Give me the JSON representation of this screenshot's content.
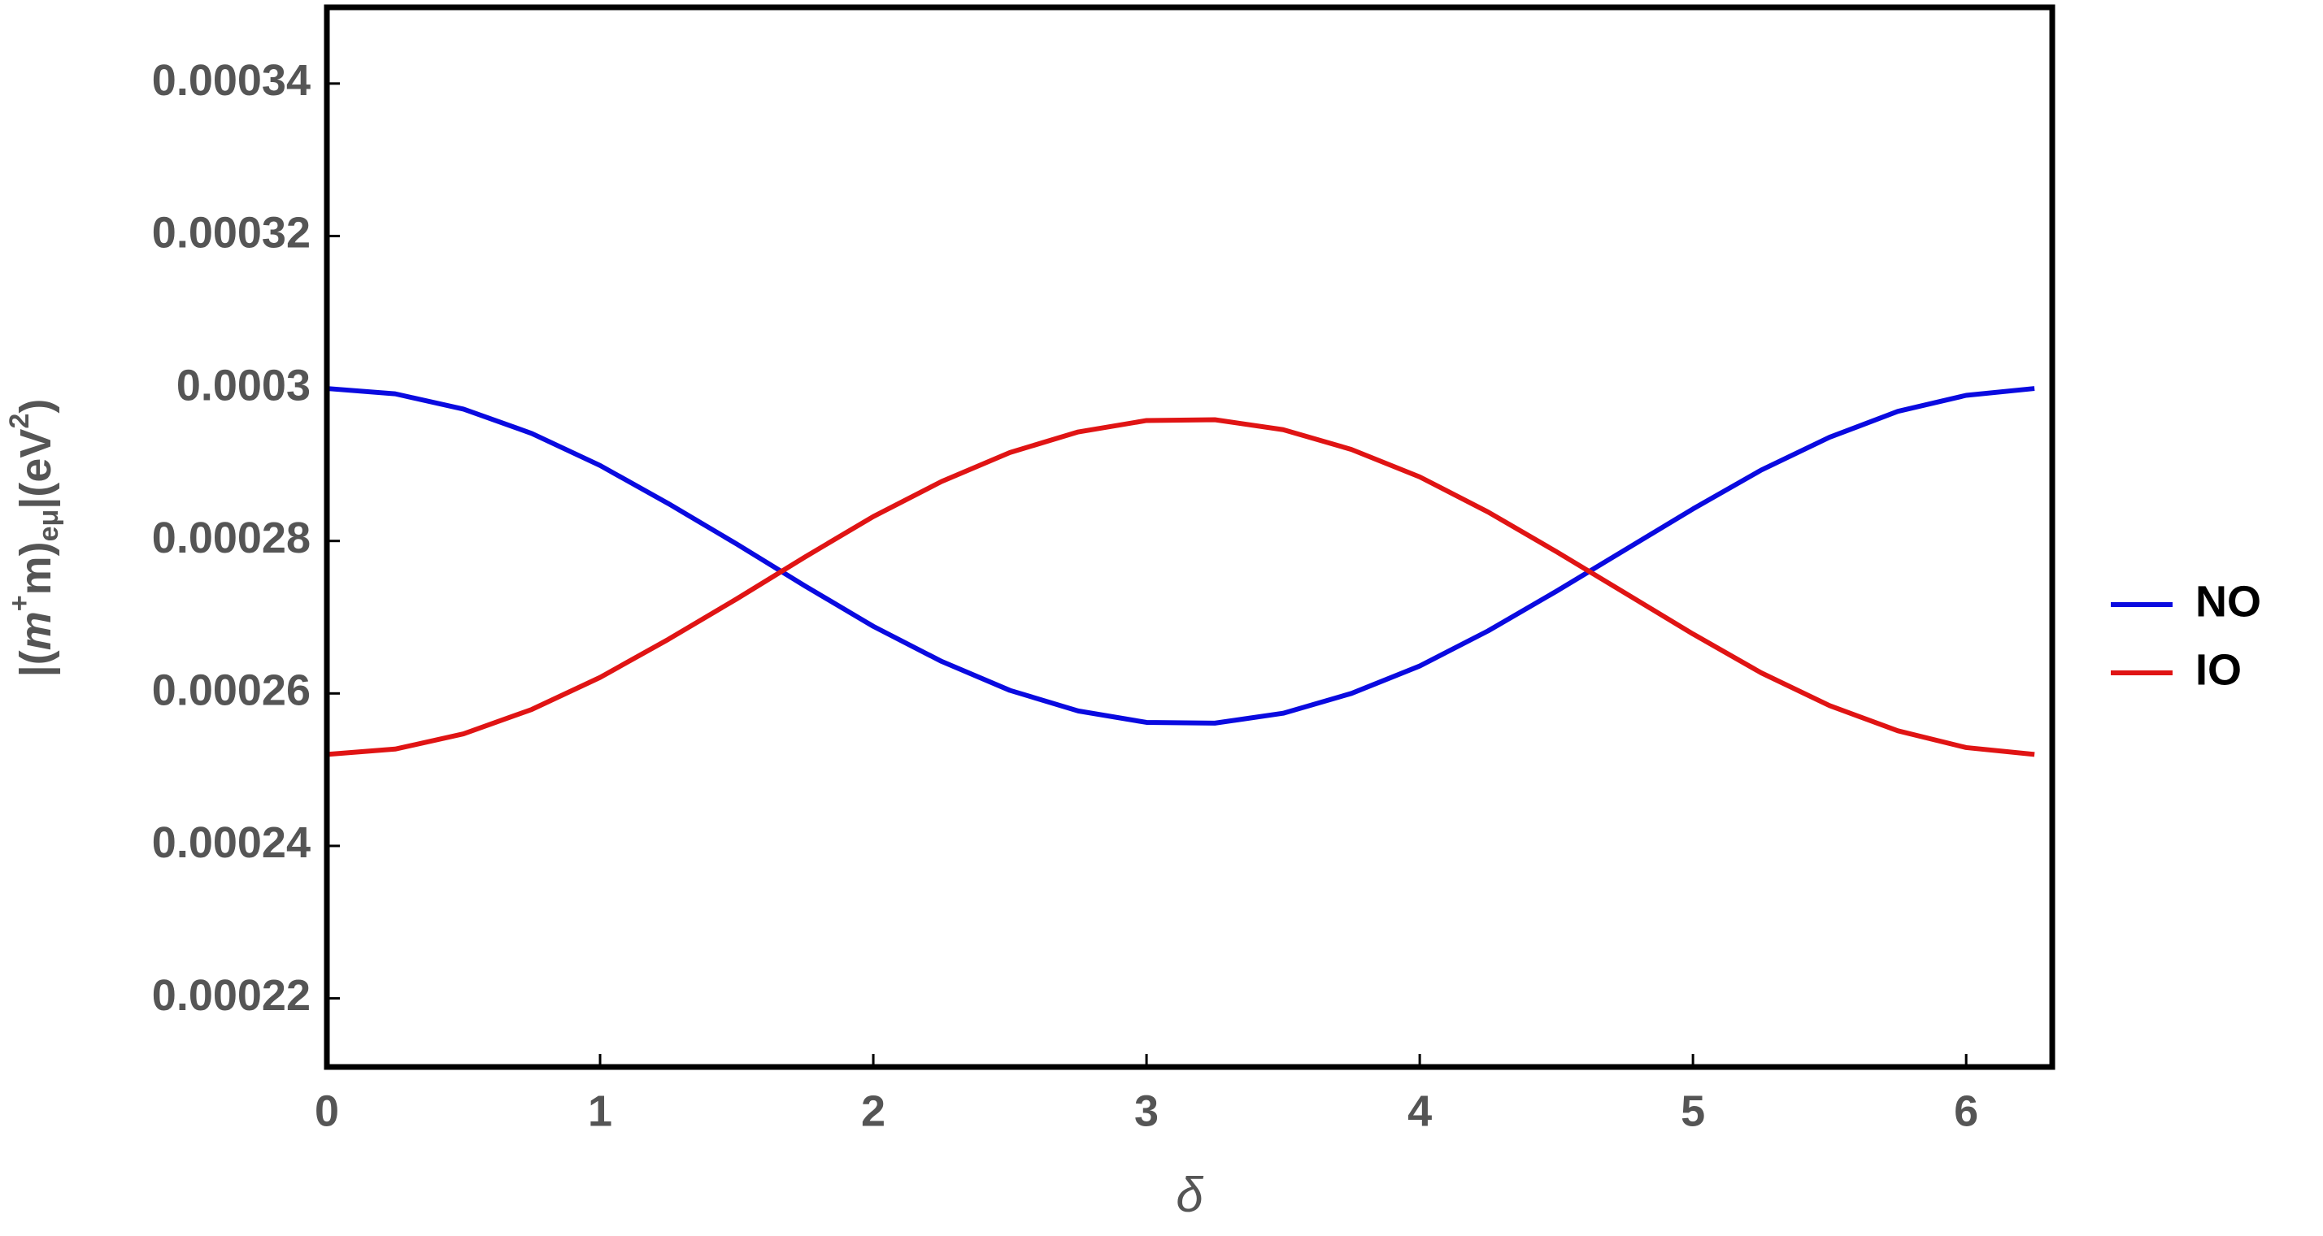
{
  "chart_data": {
    "type": "line",
    "x_label": "δ",
    "y_label_parts": [
      "|(",
      "m",
      "+",
      "m)",
      "eμ",
      "|(eV",
      "2",
      ")"
    ],
    "x": [
      0,
      0.25,
      0.5,
      0.75,
      1,
      1.25,
      1.5,
      1.75,
      2,
      2.25,
      2.5,
      2.75,
      3,
      3.25,
      3.5,
      3.75,
      4,
      4.25,
      4.5,
      4.75,
      5,
      5.25,
      5.5,
      5.75,
      6,
      6.25
    ],
    "series": [
      {
        "name": "NO",
        "color": "#0a0ae0",
        "values": [
          0.0003,
          0.0002993,
          0.0002973,
          0.0002941,
          0.0002899,
          0.0002849,
          0.0002796,
          0.0002741,
          0.0002688,
          0.0002642,
          0.0002604,
          0.0002577,
          0.0002562,
          0.0002561,
          0.0002574,
          0.00026,
          0.0002636,
          0.0002682,
          0.0002734,
          0.0002788,
          0.0002842,
          0.0002893,
          0.0002936,
          0.000297,
          0.0002991,
          0.0003
        ]
      },
      {
        "name": "IO",
        "color": "#e01414",
        "values": [
          0.000252,
          0.0002527,
          0.0002547,
          0.0002579,
          0.0002621,
          0.0002671,
          0.0002724,
          0.0002779,
          0.0002832,
          0.0002878,
          0.0002916,
          0.0002943,
          0.0002958,
          0.0002959,
          0.0002946,
          0.000292,
          0.0002884,
          0.0002838,
          0.0002786,
          0.0002732,
          0.0002678,
          0.0002627,
          0.0002584,
          0.0002551,
          0.0002529,
          0.000252
        ]
      }
    ],
    "xlim": [
      0,
      6.315
    ],
    "xticks": [
      0,
      1,
      2,
      3,
      4,
      5,
      6
    ],
    "ylim": [
      0.000211,
      0.00035
    ],
    "yticks": [
      0.00022,
      0.00024,
      0.00026,
      0.00028,
      0.0003,
      0.00032,
      0.00034
    ]
  }
}
